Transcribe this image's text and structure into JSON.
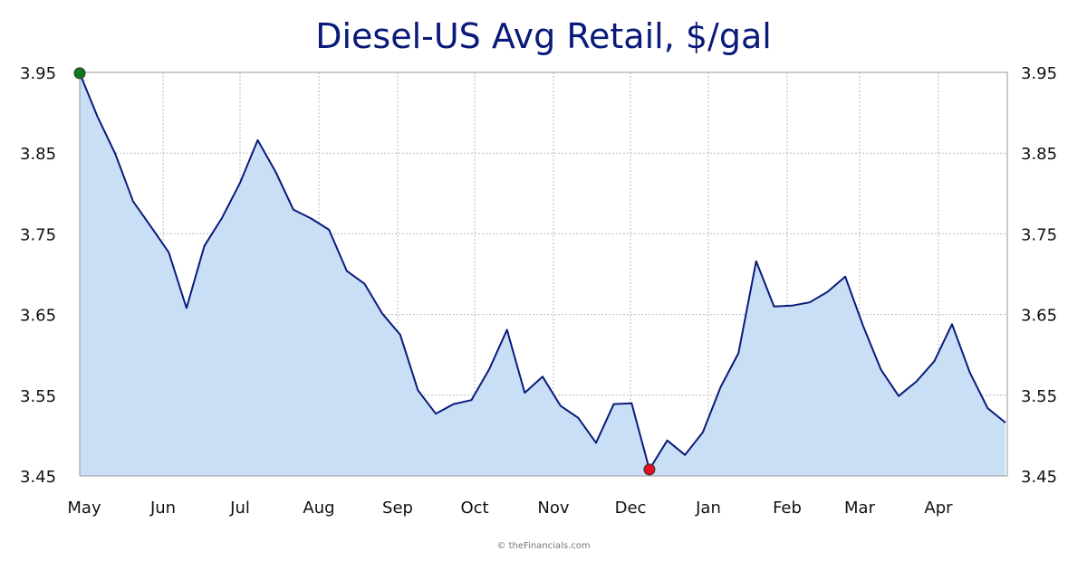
{
  "chart_data": {
    "type": "area",
    "title": "Diesel-US Avg Retail, $/gal",
    "xlabel": "",
    "ylabel": "",
    "ylim": [
      3.45,
      3.95
    ],
    "y_ticks": [
      "3.45",
      "3.55",
      "3.65",
      "3.75",
      "3.85",
      "3.95"
    ],
    "x_ticks": [
      "May",
      "Jun",
      "Jul",
      "Aug",
      "Sep",
      "Oct",
      "Nov",
      "Dec",
      "Jan",
      "Feb",
      "Mar",
      "Apr"
    ],
    "grid": true,
    "colors": {
      "line": "#0b1a7a",
      "fill": "#c9dff5",
      "max_marker": "#0a7a1a",
      "min_marker": "#e0121f"
    },
    "series": [
      {
        "values": [
          3.949,
          3.895,
          3.849,
          3.79,
          3.759,
          3.727,
          3.658,
          3.735,
          3.77,
          3.813,
          3.866,
          3.827,
          3.78,
          3.769,
          3.755,
          3.704,
          3.688,
          3.651,
          3.625,
          3.556,
          3.527,
          3.539,
          3.544,
          3.582,
          3.631,
          3.553,
          3.573,
          3.537,
          3.522,
          3.491,
          3.539,
          3.54,
          3.458,
          3.494,
          3.476,
          3.504,
          3.56,
          3.602,
          3.716,
          3.66,
          3.661,
          3.665,
          3.678,
          3.697,
          3.636,
          3.582,
          3.549,
          3.567,
          3.592,
          3.638,
          3.578,
          3.534,
          3.516
        ]
      }
    ],
    "markers": [
      {
        "label": "max",
        "index": 0,
        "value": 3.949
      },
      {
        "label": "min",
        "index": 32,
        "value": 3.458
      }
    ]
  },
  "footer": {
    "credit": "© theFinancials.com"
  }
}
